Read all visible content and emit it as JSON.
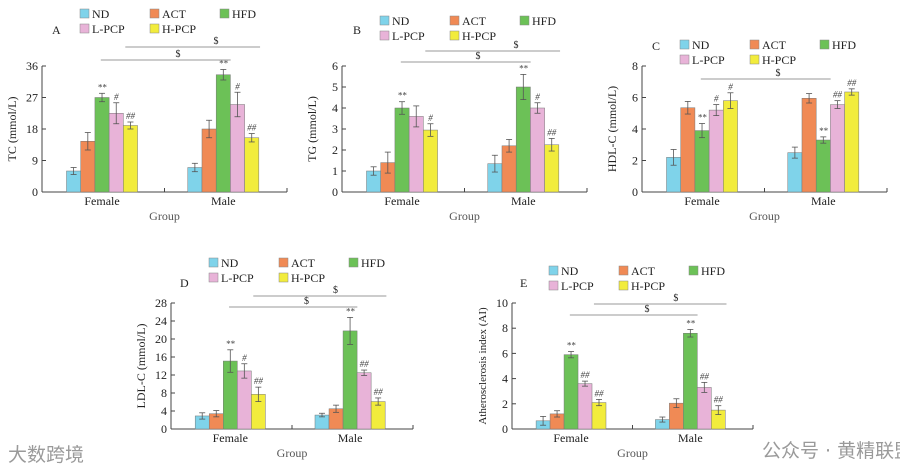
{
  "colors": {
    "ND": "#7fd3ea",
    "ACT": "#f08a55",
    "HFD": "#6cc157",
    "L-PCP": "#e8b3d8",
    "H-PCP": "#f2ec3c"
  },
  "watermarks": {
    "left": "大数跨境",
    "right": "公众号 · 黄精联盟"
  },
  "chart_data": [
    {
      "type": "bar",
      "panel": "A",
      "ylabel": "TC (mmol/L)",
      "xlabel": "Group",
      "categories": [
        "Female",
        "Male"
      ],
      "ylim": [
        0,
        36
      ],
      "yticks": [
        0,
        9,
        18,
        27,
        36
      ],
      "sig_lines": [
        "$",
        "$"
      ],
      "series": [
        {
          "name": "ND",
          "values": [
            6,
            7
          ],
          "errors": [
            1,
            1.2
          ],
          "annotations": [
            "",
            ""
          ]
        },
        {
          "name": "ACT",
          "values": [
            14.5,
            18
          ],
          "errors": [
            2.5,
            2.5
          ],
          "annotations": [
            "",
            ""
          ]
        },
        {
          "name": "HFD",
          "values": [
            27,
            33.5
          ],
          "errors": [
            1.2,
            1.5
          ],
          "annotations": [
            "**",
            "**"
          ]
        },
        {
          "name": "L-PCP",
          "values": [
            22.5,
            25
          ],
          "errors": [
            3,
            3.5
          ],
          "annotations": [
            "#",
            "#"
          ]
        },
        {
          "name": "H-PCP",
          "values": [
            19,
            15.5
          ],
          "errors": [
            1,
            1.2
          ],
          "annotations": [
            "##",
            "##"
          ]
        }
      ]
    },
    {
      "type": "bar",
      "panel": "B",
      "ylabel": "TG (mmol/L)",
      "xlabel": "Group",
      "categories": [
        "Female",
        "Male"
      ],
      "ylim": [
        0,
        6
      ],
      "yticks": [
        0,
        1,
        2,
        3,
        4,
        5,
        6
      ],
      "sig_lines": [
        "$",
        "$"
      ],
      "series": [
        {
          "name": "ND",
          "values": [
            1,
            1.35
          ],
          "errors": [
            0.2,
            0.4
          ],
          "annotations": [
            "",
            ""
          ]
        },
        {
          "name": "ACT",
          "values": [
            1.4,
            2.2
          ],
          "errors": [
            0.5,
            0.3
          ],
          "annotations": [
            "",
            ""
          ]
        },
        {
          "name": "HFD",
          "values": [
            4,
            5
          ],
          "errors": [
            0.3,
            0.6
          ],
          "annotations": [
            "**",
            "**"
          ]
        },
        {
          "name": "L-PCP",
          "values": [
            3.6,
            4
          ],
          "errors": [
            0.5,
            0.25
          ],
          "annotations": [
            "",
            "#"
          ]
        },
        {
          "name": "H-PCP",
          "values": [
            2.95,
            2.25
          ],
          "errors": [
            0.3,
            0.3
          ],
          "annotations": [
            "#",
            "##"
          ]
        }
      ]
    },
    {
      "type": "bar",
      "panel": "C",
      "ylabel": "HDL-C (mmol/L)",
      "xlabel": "Group",
      "categories": [
        "Female",
        "Male"
      ],
      "ylim": [
        0,
        8
      ],
      "yticks": [
        0,
        2,
        4,
        6,
        8
      ],
      "sig_lines": [
        "$"
      ],
      "series": [
        {
          "name": "ND",
          "values": [
            2.2,
            2.5
          ],
          "errors": [
            0.5,
            0.35
          ],
          "annotations": [
            "",
            ""
          ]
        },
        {
          "name": "ACT",
          "values": [
            5.35,
            5.95
          ],
          "errors": [
            0.4,
            0.3
          ],
          "annotations": [
            "",
            ""
          ]
        },
        {
          "name": "HFD",
          "values": [
            3.9,
            3.3
          ],
          "errors": [
            0.45,
            0.2
          ],
          "annotations": [
            "**",
            "**"
          ]
        },
        {
          "name": "L-PCP",
          "values": [
            5.2,
            5.55
          ],
          "errors": [
            0.35,
            0.25
          ],
          "annotations": [
            "#",
            "##"
          ]
        },
        {
          "name": "H-PCP",
          "values": [
            5.8,
            6.35
          ],
          "errors": [
            0.5,
            0.2
          ],
          "annotations": [
            "#",
            "##"
          ]
        }
      ]
    },
    {
      "type": "bar",
      "panel": "D",
      "ylabel": "LDL-C (mmol/L)",
      "xlabel": "Group",
      "categories": [
        "Female",
        "Male"
      ],
      "ylim": [
        0,
        28
      ],
      "yticks": [
        0,
        4,
        8,
        12,
        16,
        20,
        24,
        28
      ],
      "sig_lines": [
        "$",
        "$"
      ],
      "series": [
        {
          "name": "ND",
          "values": [
            2.9,
            3.1
          ],
          "errors": [
            0.7,
            0.4
          ],
          "annotations": [
            "",
            ""
          ]
        },
        {
          "name": "ACT",
          "values": [
            3.4,
            4.5
          ],
          "errors": [
            0.7,
            0.8
          ],
          "annotations": [
            "",
            ""
          ]
        },
        {
          "name": "HFD",
          "values": [
            15.1,
            21.8
          ],
          "errors": [
            2.5,
            3
          ],
          "annotations": [
            "**",
            "**"
          ]
        },
        {
          "name": "L-PCP",
          "values": [
            12.9,
            12.5
          ],
          "errors": [
            1.6,
            0.6
          ],
          "annotations": [
            "#",
            "##"
          ]
        },
        {
          "name": "H-PCP",
          "values": [
            7.7,
            6.1
          ],
          "errors": [
            1.6,
            0.8
          ],
          "annotations": [
            "##",
            "##"
          ]
        }
      ]
    },
    {
      "type": "bar",
      "panel": "E",
      "ylabel": "Atherosclerosis index (AI)",
      "xlabel": "Group",
      "categories": [
        "Female",
        "Male"
      ],
      "ylim": [
        0,
        10
      ],
      "yticks": [
        0,
        2,
        4,
        6,
        8,
        10
      ],
      "sig_lines": [
        "$",
        "$"
      ],
      "series": [
        {
          "name": "ND",
          "values": [
            0.65,
            0.75
          ],
          "errors": [
            0.35,
            0.2
          ],
          "annotations": [
            "",
            ""
          ]
        },
        {
          "name": "ACT",
          "values": [
            1.2,
            2.05
          ],
          "errors": [
            0.25,
            0.35
          ],
          "annotations": [
            "",
            ""
          ]
        },
        {
          "name": "HFD",
          "values": [
            5.9,
            7.6
          ],
          "errors": [
            0.25,
            0.3
          ],
          "annotations": [
            "**",
            "**"
          ]
        },
        {
          "name": "L-PCP",
          "values": [
            3.6,
            3.3
          ],
          "errors": [
            0.2,
            0.4
          ],
          "annotations": [
            "##",
            "##"
          ]
        },
        {
          "name": "H-PCP",
          "values": [
            2.1,
            1.5
          ],
          "errors": [
            0.25,
            0.35
          ],
          "annotations": [
            "##",
            "##"
          ]
        }
      ]
    }
  ]
}
